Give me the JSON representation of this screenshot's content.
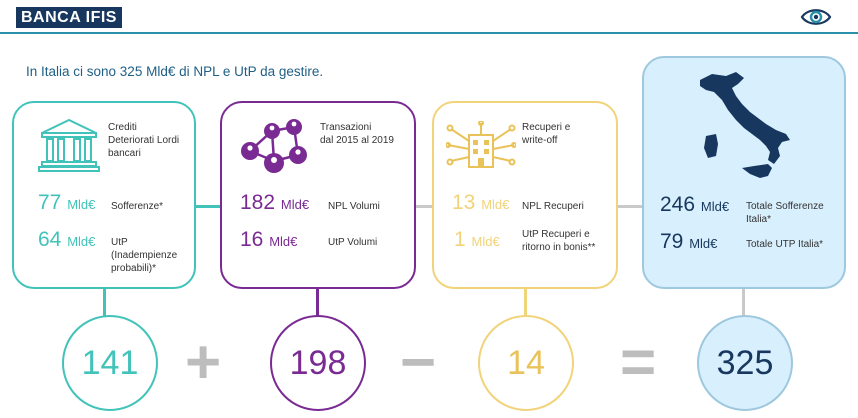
{
  "header": {
    "logo_text": "BANCA IFIS",
    "eye_icon": "eye-icon"
  },
  "headline": "In Italia ci sono 325 Mld€ di NPL e UtP da gestire.",
  "colors": {
    "teal": "#41c3b9",
    "purple": "#7a2a93",
    "yellow": "#f1d37a",
    "blue": "#1f5f86",
    "lightblue": "#d8effd",
    "navy": "#17375e"
  },
  "cards": [
    {
      "title_lines": [
        "Crediti",
        "Deteriorati Lordi",
        "bancari"
      ],
      "icon": "bank-icon",
      "rows": [
        {
          "value": "77",
          "unit": "Mld€",
          "label_lines": [
            "Sofferenze*"
          ]
        },
        {
          "value": "64",
          "unit": "Mld€",
          "label_lines": [
            "UtP",
            "(Inadempienze",
            "probabili)*"
          ]
        }
      ]
    },
    {
      "title_lines": [
        "Transazioni",
        "dal 2015 al 2019"
      ],
      "icon": "network-people-icon",
      "rows": [
        {
          "value": "182",
          "unit": "Mld€",
          "label_lines": [
            "NPL Volumi"
          ]
        },
        {
          "value": "16",
          "unit": "Mld€",
          "label_lines": [
            "UtP Volumi"
          ]
        }
      ]
    },
    {
      "title_lines": [
        "Recuperi e",
        "write-off"
      ],
      "icon": "building-circuit-icon",
      "rows": [
        {
          "value": "13",
          "unit": "Mld€",
          "label_lines": [
            "NPL Recuperi"
          ]
        },
        {
          "value": "1",
          "unit": "Mld€",
          "label_lines": [
            "UtP Recuperi e",
            "ritorno in bonis**"
          ]
        }
      ]
    },
    {
      "icon": "italy-map-icon",
      "rows": [
        {
          "value": "246",
          "unit": "Mld€",
          "label_lines": [
            "Totale Sofferenze",
            "Italia*"
          ]
        },
        {
          "value": "79",
          "unit": "Mld€",
          "label_lines": [
            "Totale UTP Italia*"
          ]
        }
      ]
    }
  ],
  "equation": {
    "terms": [
      "141",
      "198",
      "14",
      "325"
    ],
    "operators": [
      "+",
      "−",
      "="
    ]
  }
}
